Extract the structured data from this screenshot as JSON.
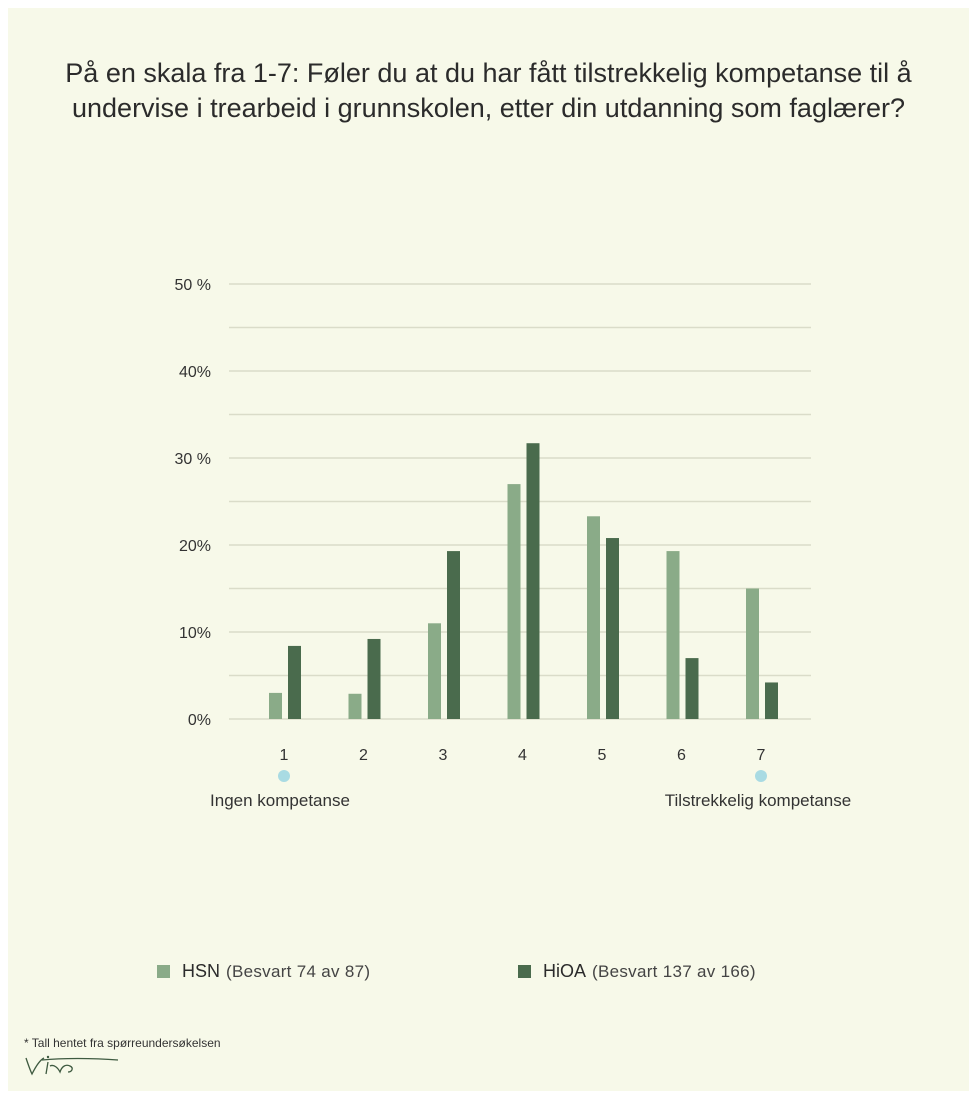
{
  "chart_data": {
    "type": "bar",
    "title": "På en skala fra 1-7: Føler du at du har fått tilstrekkelig kompetanse til å undervise i trearbeid i grunnskolen, etter din utdanning som faglærer?",
    "categories": [
      "1",
      "2",
      "3",
      "4",
      "5",
      "6",
      "7"
    ],
    "series": [
      {
        "name": "HSN",
        "note": "(Besvart 74 av 87)",
        "color": "#8aab88",
        "values": [
          3,
          2.9,
          11,
          27,
          23.3,
          19.3,
          15
        ]
      },
      {
        "name": "HiOA",
        "note": "(Besvart 137 av 166)",
        "color": "#4a6b4d",
        "values": [
          8.4,
          9.2,
          19.3,
          31.7,
          20.8,
          7,
          4.2
        ]
      }
    ],
    "ylim": [
      0,
      50
    ],
    "yticks": [
      {
        "value": 0,
        "label": "0%"
      },
      {
        "value": 10,
        "label": "10%"
      },
      {
        "value": 20,
        "label": "20%"
      },
      {
        "value": 30,
        "label": "30 %"
      },
      {
        "value": 40,
        "label": "40%"
      },
      {
        "value": 50,
        "label": "50 %"
      }
    ],
    "minor_gridlines": [
      5,
      15,
      25,
      35,
      45
    ],
    "scale_labels": {
      "low": "Ingen kompetanse",
      "high": "Tilstrekkelig kompetanse"
    },
    "marker_color": "#a9dbe3",
    "grid": true,
    "legend_position": "bottom"
  },
  "footnote": "* Tall hentet fra spørreundersøkelsen"
}
